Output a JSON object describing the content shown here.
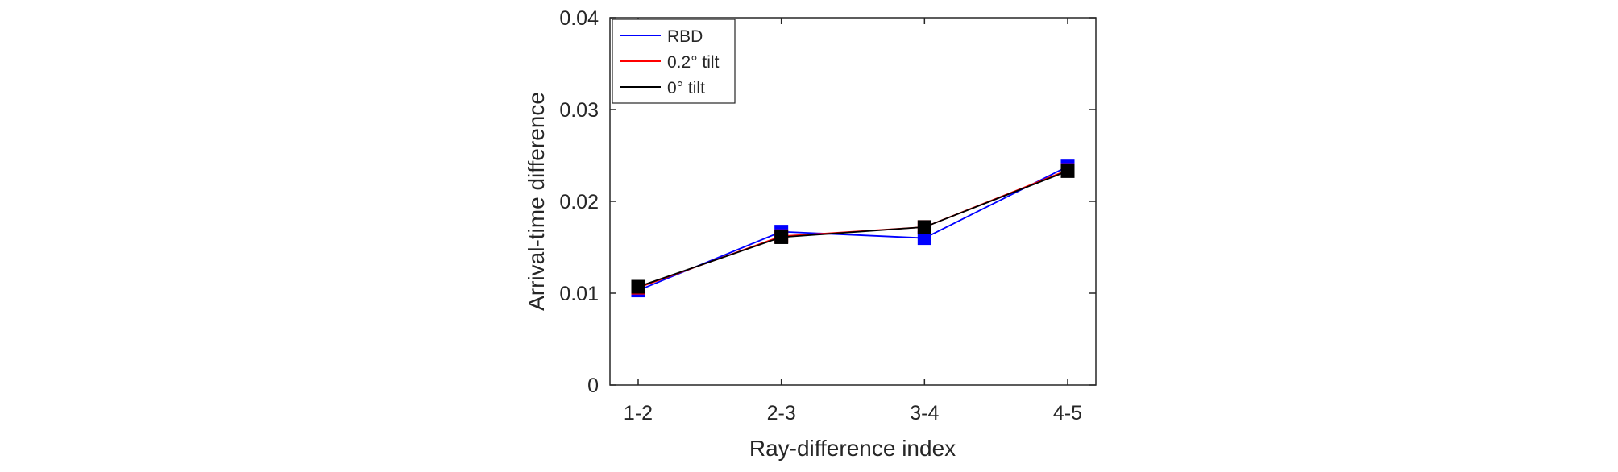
{
  "chart_data": {
    "type": "line",
    "title": "",
    "xlabel": "Ray-difference index",
    "ylabel": "Arrival-time difference",
    "categories": [
      "1-2",
      "2-3",
      "3-4",
      "4-5"
    ],
    "ylim": [
      0,
      0.04
    ],
    "yticks": [
      "0",
      "0.01",
      "0.02",
      "0.03",
      "0.04"
    ],
    "grid": false,
    "legend_position": "top-left",
    "series": [
      {
        "name": "RBD",
        "color": "#0000ff",
        "marker": "square",
        "values": [
          0.0103,
          0.0167,
          0.016,
          0.0238
        ]
      },
      {
        "name": "0.2° tilt",
        "color": "#ff0000",
        "marker": "square",
        "values": [
          0.0106,
          0.0162,
          0.0172,
          0.0234
        ]
      },
      {
        "name": "0° tilt",
        "color": "#000000",
        "marker": "square",
        "values": [
          0.0107,
          0.0161,
          0.0172,
          0.0233
        ]
      }
    ]
  }
}
